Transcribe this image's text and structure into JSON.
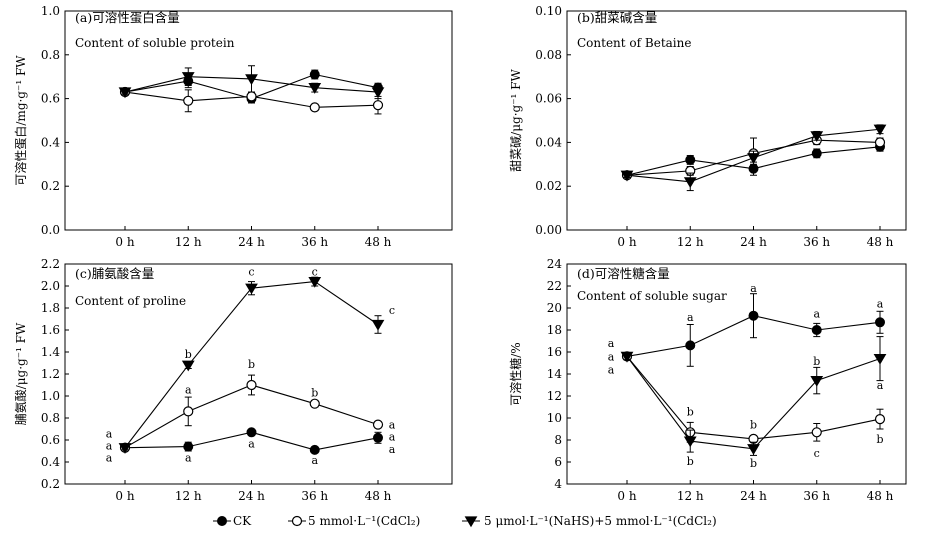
{
  "chart_data": [
    {
      "id": "a",
      "type": "line",
      "title": "(a)可溶性蛋白含量",
      "subtitle": "Content of soluble protein",
      "ylabel": "可溶性蛋白/mg·g⁻¹ FW",
      "categories": [
        "0 h",
        "12 h",
        "24 h",
        "36 h",
        "48 h"
      ],
      "ylim": [
        0,
        1.0
      ],
      "yticks": [
        "0.0",
        "0.2",
        "0.4",
        "0.6",
        "0.8",
        "1.0"
      ],
      "series": [
        {
          "key": "CK",
          "values": [
            0.63,
            0.68,
            0.6,
            0.71,
            0.65
          ],
          "errors": [
            0.01,
            0.03,
            0.02,
            0.02,
            0.02
          ]
        },
        {
          "key": "Cd",
          "values": [
            0.63,
            0.59,
            0.61,
            0.56,
            0.57
          ],
          "errors": [
            0.01,
            0.05,
            0.02,
            0.01,
            0.04
          ]
        },
        {
          "key": "NaHS",
          "values": [
            0.63,
            0.7,
            0.69,
            0.65,
            0.63
          ],
          "errors": [
            0.01,
            0.04,
            0.06,
            0.02,
            0.03
          ]
        }
      ],
      "annotations": []
    },
    {
      "id": "b",
      "type": "line",
      "title": "(b)甜菜碱含量",
      "subtitle": "Content of Betaine",
      "ylabel": "甜菜碱/μg·g⁻¹ FW",
      "categories": [
        "0 h",
        "12 h",
        "24 h",
        "36 h",
        "48 h"
      ],
      "ylim": [
        0,
        0.1
      ],
      "yticks": [
        "0.00",
        "0.02",
        "0.04",
        "0.06",
        "0.08",
        "0.10"
      ],
      "series": [
        {
          "key": "CK",
          "values": [
            0.025,
            0.032,
            0.028,
            0.035,
            0.038
          ],
          "errors": [
            0.001,
            0.002,
            0.003,
            0.002,
            0.002
          ]
        },
        {
          "key": "Cd",
          "values": [
            0.025,
            0.027,
            0.035,
            0.041,
            0.04
          ],
          "errors": [
            0.001,
            0.002,
            0.007,
            0.002,
            0.002
          ]
        },
        {
          "key": "NaHS",
          "values": [
            0.025,
            0.022,
            0.033,
            0.043,
            0.046
          ],
          "errors": [
            0.001,
            0.004,
            0.003,
            0.002,
            0.002
          ]
        }
      ],
      "annotations": []
    },
    {
      "id": "c",
      "type": "line",
      "title": "(c)脯氨酸含量",
      "subtitle": "Content of proline",
      "ylabel": "脯氨酸/μg·g⁻¹ FW",
      "categories": [
        "0 h",
        "12 h",
        "24 h",
        "36 h",
        "48 h"
      ],
      "ylim": [
        0.2,
        2.2
      ],
      "yticks": [
        "0.2",
        "0.4",
        "0.6",
        "0.8",
        "1.0",
        "1.2",
        "1.4",
        "1.6",
        "1.8",
        "2.0",
        "2.2"
      ],
      "series": [
        {
          "key": "CK",
          "values": [
            0.53,
            0.54,
            0.67,
            0.51,
            0.62
          ],
          "errors": [
            0.02,
            0.04,
            0.02,
            0.02,
            0.05
          ]
        },
        {
          "key": "Cd",
          "values": [
            0.53,
            0.86,
            1.1,
            0.93,
            0.74
          ],
          "errors": [
            0.02,
            0.13,
            0.09,
            0.03,
            0.02
          ]
        },
        {
          "key": "NaHS",
          "values": [
            0.53,
            1.28,
            1.98,
            2.04,
            1.65
          ],
          "errors": [
            0.02,
            0.03,
            0.06,
            0.04,
            0.08
          ]
        }
      ],
      "annotations": [
        {
          "text": "a",
          "x": 0,
          "y": 0.66
        },
        {
          "text": "a",
          "x": 0,
          "y": 0.55
        },
        {
          "text": "a",
          "x": 0,
          "y": 0.44
        },
        {
          "text": "b",
          "x": 1,
          "y": 1.38
        },
        {
          "text": "a",
          "x": 1,
          "y": 1.06
        },
        {
          "text": "a",
          "x": 1,
          "y": 0.44
        },
        {
          "text": "c",
          "x": 2,
          "y": 2.13
        },
        {
          "text": "b",
          "x": 2,
          "y": 1.29
        },
        {
          "text": "a",
          "x": 2,
          "y": 0.57
        },
        {
          "text": "c",
          "x": 3,
          "y": 2.13
        },
        {
          "text": "b",
          "x": 3,
          "y": 1.03
        },
        {
          "text": "a",
          "x": 3,
          "y": 0.42
        },
        {
          "text": "c",
          "x": 4,
          "y": 1.78
        },
        {
          "text": "a",
          "x": 4,
          "y": 0.74
        },
        {
          "text": "a",
          "x": 4,
          "y": 0.63
        },
        {
          "text": "a",
          "x": 4,
          "y": 0.52
        }
      ]
    },
    {
      "id": "d",
      "type": "line",
      "title": "(d)可溶性糖含量",
      "subtitle": "Content of soluble sugar",
      "ylabel": "可溶性糖/%",
      "categories": [
        "0 h",
        "12 h",
        "24 h",
        "36 h",
        "48 h"
      ],
      "ylim": [
        4,
        24
      ],
      "yticks": [
        "4",
        "6",
        "8",
        "10",
        "12",
        "14",
        "16",
        "18",
        "20",
        "22",
        "24"
      ],
      "series": [
        {
          "key": "CK",
          "values": [
            15.6,
            16.6,
            19.3,
            18.0,
            18.7
          ],
          "errors": [
            0.3,
            1.9,
            2.0,
            0.6,
            1.0
          ]
        },
        {
          "key": "Cd",
          "values": [
            15.6,
            8.7,
            8.1,
            8.7,
            9.9
          ],
          "errors": [
            0.3,
            0.9,
            0.3,
            0.8,
            0.9
          ]
        },
        {
          "key": "NaHS",
          "values": [
            15.6,
            7.9,
            7.2,
            13.4,
            15.4
          ],
          "errors": [
            0.3,
            1.0,
            0.6,
            1.2,
            2.0
          ]
        }
      ],
      "annotations": [
        {
          "text": "a",
          "x": 0,
          "y": 16.8
        },
        {
          "text": "a",
          "x": 0,
          "y": 15.6
        },
        {
          "text": "a",
          "x": 0,
          "y": 14.4
        },
        {
          "text": "a",
          "x": 1,
          "y": 19.2
        },
        {
          "text": "b",
          "x": 1,
          "y": 10.6
        },
        {
          "text": "b",
          "x": 1,
          "y": 6.1
        },
        {
          "text": "a",
          "x": 2,
          "y": 21.8
        },
        {
          "text": "b",
          "x": 2,
          "y": 9.4
        },
        {
          "text": "b",
          "x": 2,
          "y": 5.9
        },
        {
          "text": "a",
          "x": 3,
          "y": 19.5
        },
        {
          "text": "b",
          "x": 3,
          "y": 15.2
        },
        {
          "text": "c",
          "x": 3,
          "y": 6.8
        },
        {
          "text": "a",
          "x": 4,
          "y": 20.4
        },
        {
          "text": "a",
          "x": 4,
          "y": 13.0
        },
        {
          "text": "b",
          "x": 4,
          "y": 8.1
        }
      ]
    }
  ],
  "legend": [
    {
      "key": "CK",
      "label": "CK",
      "marker": "filled-circle"
    },
    {
      "key": "Cd",
      "label": "5 mmol·L⁻¹(CdCl₂)",
      "marker": "open-circle"
    },
    {
      "key": "NaHS",
      "label": "5 μmol·L⁻¹(NaHS)+5 mmol·L⁻¹(CdCl₂)",
      "marker": "filled-triangle-down"
    }
  ]
}
